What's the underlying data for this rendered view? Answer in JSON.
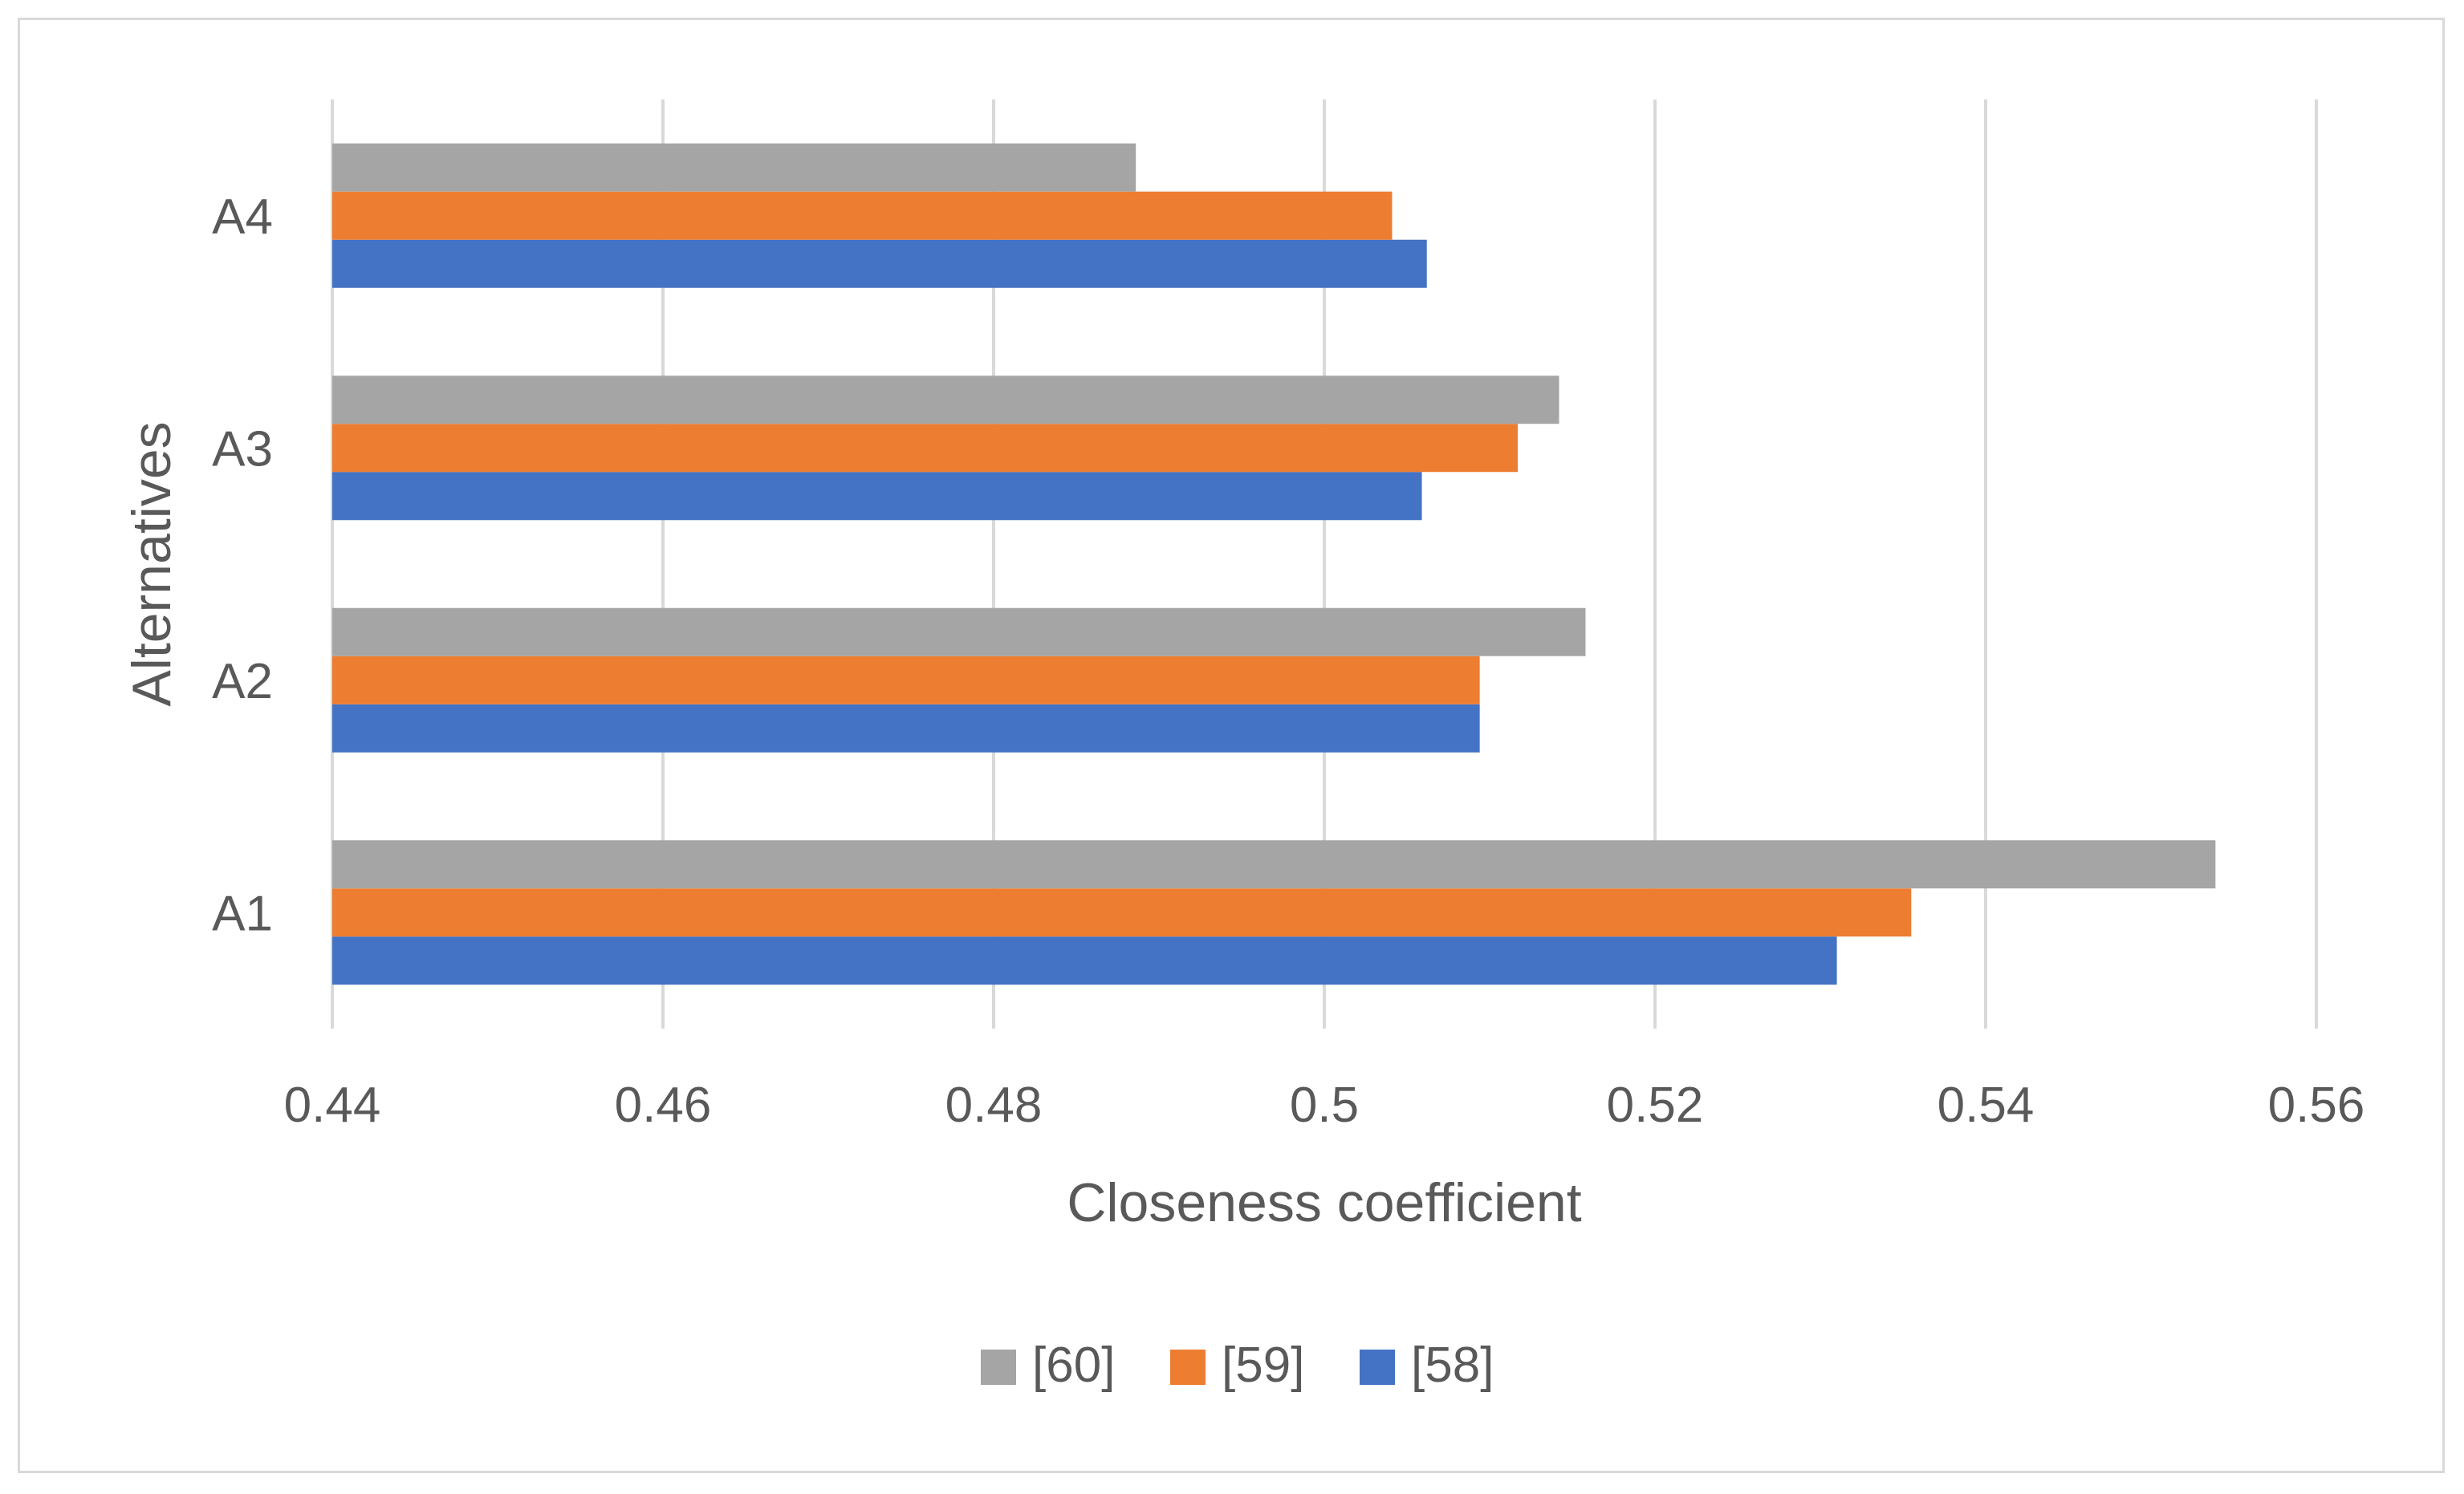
{
  "chart_data": {
    "type": "bar",
    "orientation": "horizontal",
    "categories": [
      "A1",
      "A2",
      "A3",
      "A4"
    ],
    "series": [
      {
        "name": "[58]",
        "values": [
          0.531,
          0.5094,
          0.5059,
          0.5062
        ],
        "color": "#4472C4"
      },
      {
        "name": "[59]",
        "values": [
          0.5355,
          0.5094,
          0.5117,
          0.5041
        ],
        "color": "#ED7D31"
      },
      {
        "name": "[60]",
        "values": [
          0.5539,
          0.5158,
          0.5142,
          0.4886
        ],
        "color": "#A5A5A5"
      }
    ],
    "xlabel": "Closeness coefficient",
    "ylabel": "Alternatives",
    "xlim": [
      0.44,
      0.56
    ],
    "xticks": [
      "0.44",
      "0.46",
      "0.48",
      "0.5",
      "0.52",
      "0.54",
      "0.56"
    ],
    "xtick_values": [
      0.44,
      0.46,
      0.48,
      0.5,
      0.52,
      0.54,
      0.56
    ],
    "grid": "vertical",
    "legend": {
      "position": "bottom",
      "order": [
        "[60]",
        "[59]",
        "[58]"
      ]
    }
  }
}
